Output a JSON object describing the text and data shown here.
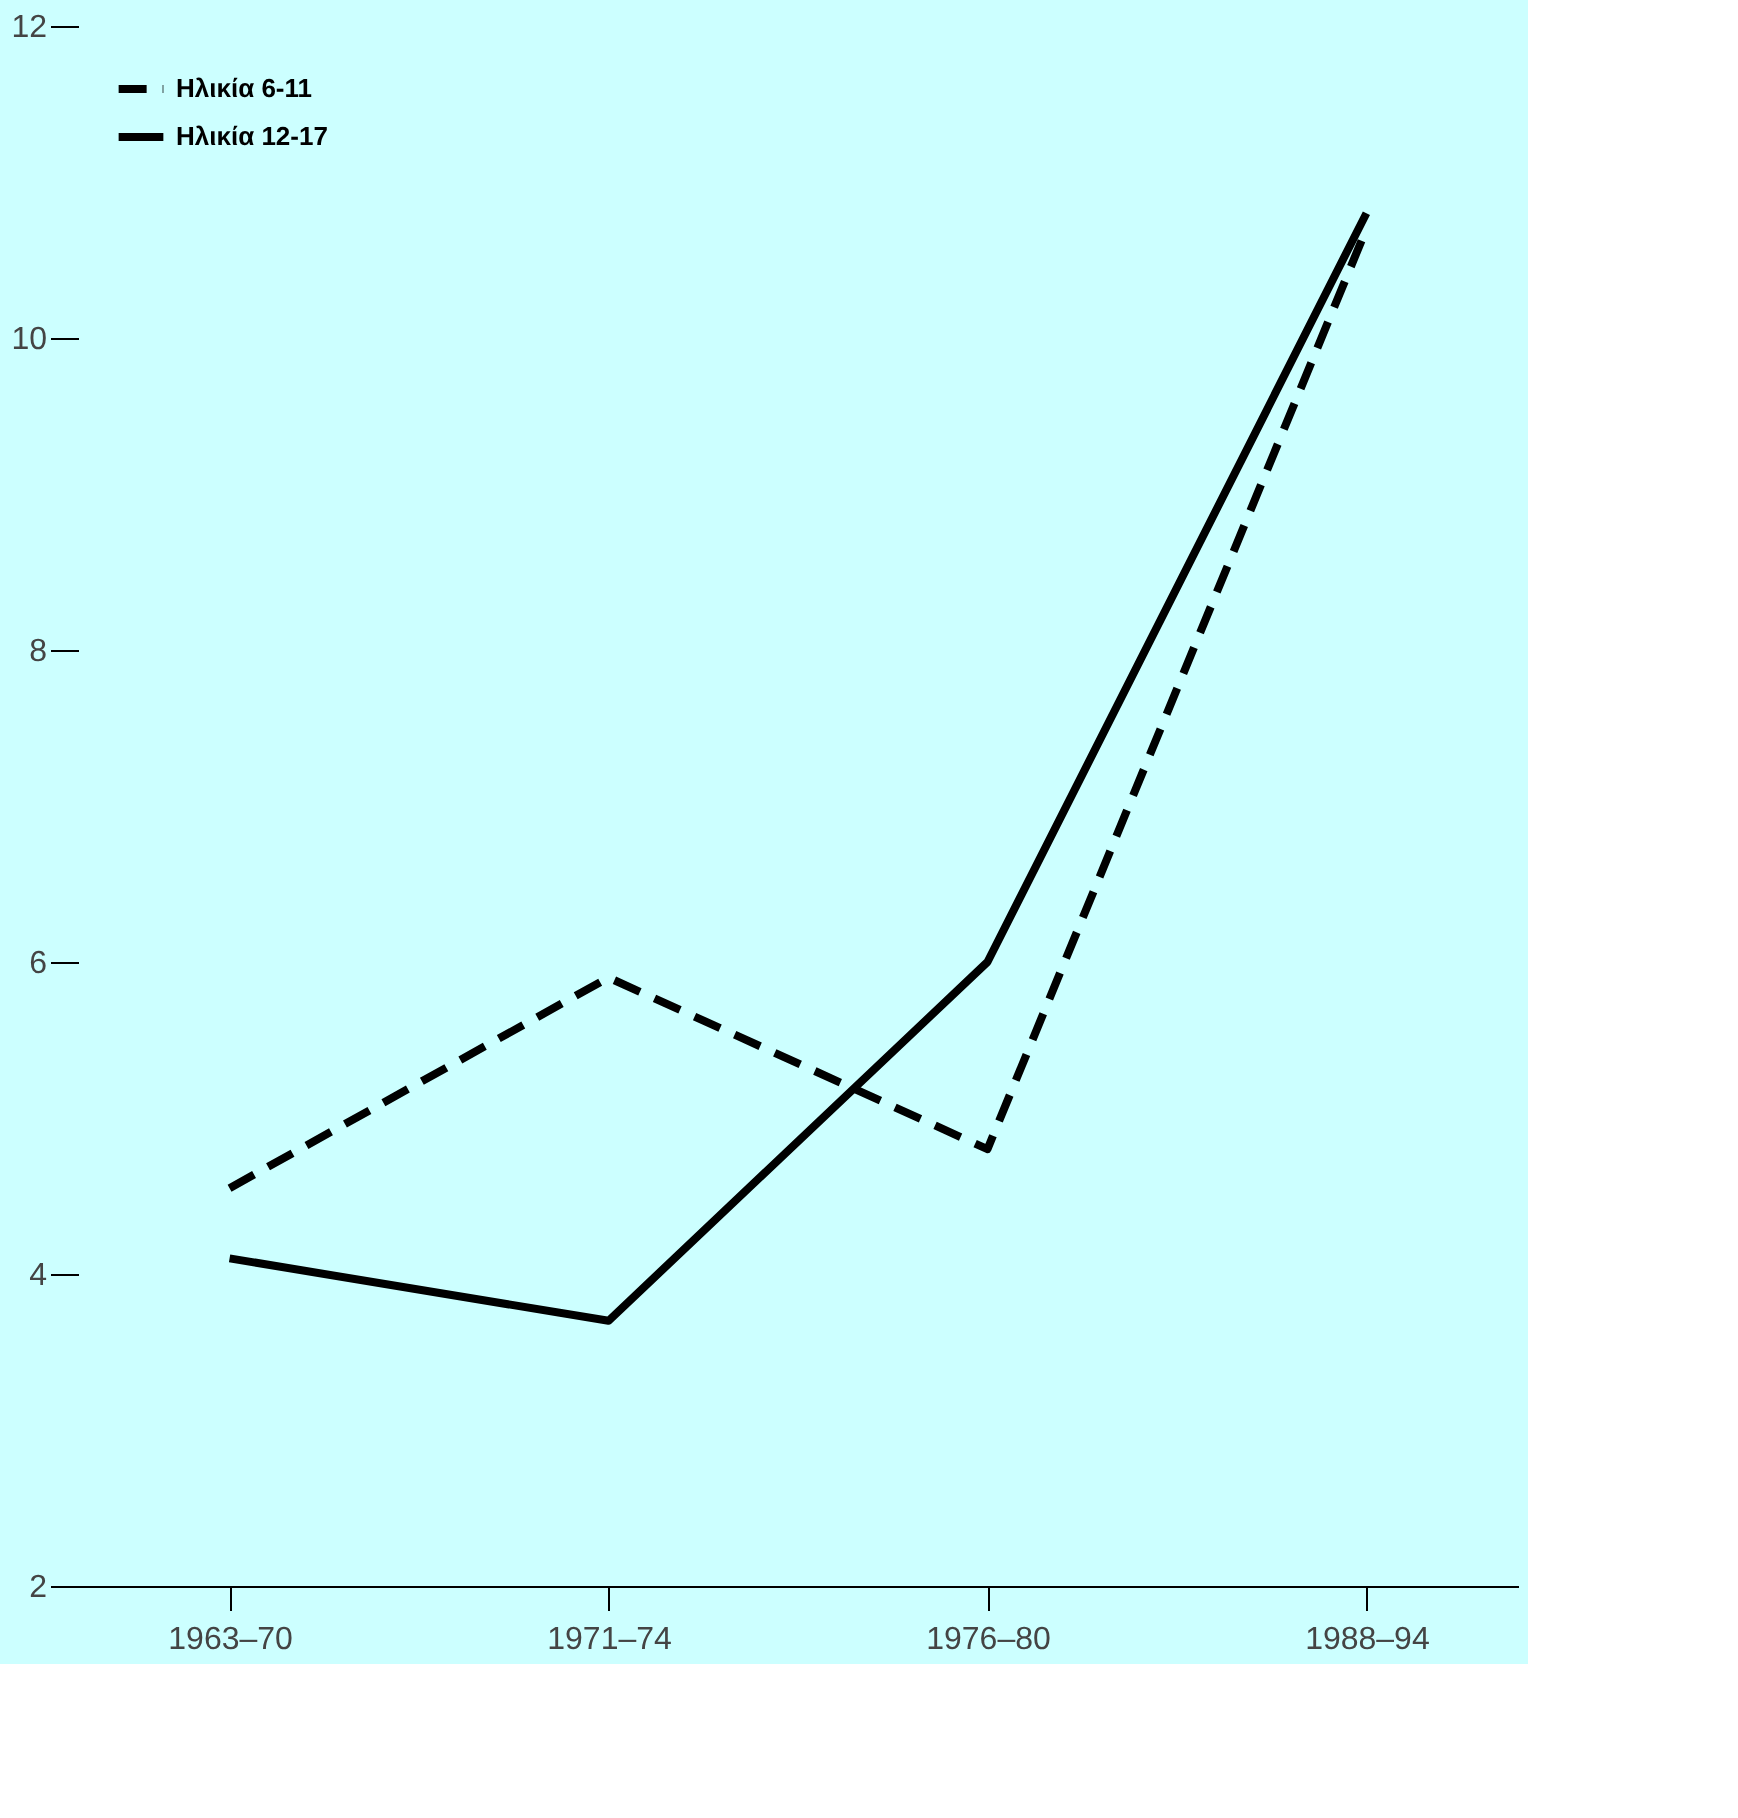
{
  "chart_data": {
    "type": "line",
    "categories": [
      "1963–70",
      "1971–74",
      "1976–80",
      "1988–94"
    ],
    "series": [
      {
        "name": "Ηλικία 6-11",
        "color": "#000000",
        "line_style": "dashed",
        "values": [
          4.55,
          5.9,
          4.8,
          10.7
        ]
      },
      {
        "name": "Ηλικία 12-17",
        "color": "#000000",
        "line_style": "solid",
        "values": [
          4.1,
          3.7,
          6.0,
          10.8
        ]
      }
    ],
    "ylim": [
      2,
      12
    ],
    "yticks": [
      2,
      4,
      6,
      8,
      10,
      12
    ],
    "grid": false,
    "legend": "top left",
    "marker": "none"
  }
}
